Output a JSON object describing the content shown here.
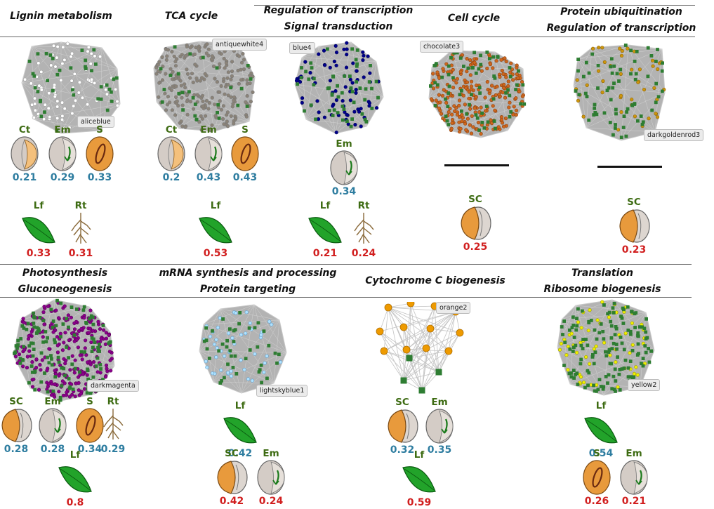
{
  "rows": [
    {
      "modules": [
        {
          "id": "m1",
          "title_lines": [
            "Lignin metabolism"
          ],
          "color_name": "aliceblue",
          "node_color": "#ffffff",
          "node_stroke": "#9a9a9a",
          "blue_tissues": [
            {
              "label": "Ct",
              "icon": "cotyledon",
              "value": "0.21"
            },
            {
              "label": "Em",
              "icon": "embryo",
              "value": "0.29"
            },
            {
              "label": "S",
              "icon": "seed",
              "value": "0.33"
            }
          ],
          "red_tissues": [
            {
              "label": "Lf",
              "icon": "leaf",
              "value": "0.33"
            },
            {
              "label": "Rt",
              "icon": "root",
              "value": "0.31"
            }
          ]
        },
        {
          "id": "m2",
          "title_lines": [
            "TCA cycle"
          ],
          "color_name": "antiquewhite4",
          "node_color": "#8b8378",
          "node_stroke": "#777",
          "blue_tissues": [
            {
              "label": "Ct",
              "icon": "cotyledon",
              "value": "0.2"
            },
            {
              "label": "Em",
              "icon": "embryo",
              "value": "0.43"
            },
            {
              "label": "S",
              "icon": "seed",
              "value": "0.43"
            }
          ],
          "red_tissues": [
            {
              "label": "Lf",
              "icon": "leaf",
              "value": "0.53"
            }
          ]
        },
        {
          "id": "m3",
          "title_lines": [
            "Regulation of transcription",
            "Signal transduction"
          ],
          "color_name": "blue4",
          "node_color": "#00008b",
          "node_stroke": "#00005a",
          "blue_tissues": [
            {
              "label": "Em",
              "icon": "embryo",
              "value": "0.34"
            }
          ],
          "red_tissues": [
            {
              "label": "Lf",
              "icon": "leaf",
              "value": "0.21"
            },
            {
              "label": "Rt",
              "icon": "root",
              "value": "0.24"
            }
          ]
        },
        {
          "id": "m4",
          "title_lines": [
            "Cell cycle"
          ],
          "color_name": "chocolate3",
          "node_color": "#cd661d",
          "node_stroke": "#8a4010",
          "blue_tissues": [],
          "red_tissues": [
            {
              "label": "SC",
              "icon": "seedcoat",
              "value": "0.25"
            }
          ]
        },
        {
          "id": "m5",
          "title_lines": [
            "Protein ubiquitination",
            "Regulation of transcription"
          ],
          "color_name": "darkgoldenrod3",
          "node_color": "#cd950c",
          "node_stroke": "#8a6408",
          "blue_tissues": [],
          "red_tissues": [
            {
              "label": "SC",
              "icon": "seedcoat",
              "value": "0.23"
            }
          ]
        }
      ]
    },
    {
      "modules": [
        {
          "id": "m6",
          "title_lines": [
            "Photosynthesis",
            "Gluconeogenesis"
          ],
          "color_name": "darkmagenta",
          "node_color": "#8b008b",
          "node_stroke": "#5a005a",
          "blue_tissues": [
            {
              "label": "SC",
              "icon": "seedcoat",
              "value": "0.28"
            },
            {
              "label": "Em",
              "icon": "embryo",
              "value": "0.28"
            },
            {
              "label": "S",
              "icon": "seed",
              "value": "0.34"
            },
            {
              "label": "Rt",
              "icon": "root",
              "value": "0.29"
            }
          ],
          "red_tissues": [
            {
              "label": "Lf",
              "icon": "leaf",
              "value": "0.8"
            }
          ]
        },
        {
          "id": "m7",
          "title_lines": [
            "mRNA synthesis and processing",
            "Protein targeting"
          ],
          "color_name": "lightskyblue1",
          "node_color": "#b0e2ff",
          "node_stroke": "#5b9bc9",
          "blue_tissues": [
            {
              "label": "Lf",
              "icon": "leaf",
              "value": "0.42"
            }
          ],
          "red_tissues": [
            {
              "label": "SC",
              "icon": "seedcoat",
              "value": "0.42"
            },
            {
              "label": "Em",
              "icon": "embryo",
              "value": "0.24"
            }
          ]
        },
        {
          "id": "m8",
          "title_lines": [
            "Cytochrome C biogenesis"
          ],
          "color_name": "orange2",
          "node_color": "#ee9a00",
          "node_stroke": "#b06f00",
          "blue_tissues": [
            {
              "label": "SC",
              "icon": "seedcoat",
              "value": "0.32"
            },
            {
              "label": "Em",
              "icon": "embryo",
              "value": "0.35"
            }
          ],
          "red_tissues": [
            {
              "label": "Lf",
              "icon": "leaf",
              "value": "0.59"
            }
          ]
        },
        {
          "id": "m9",
          "title_lines": [
            "Translation",
            "Ribosome biogenesis"
          ],
          "color_name": "yellow2",
          "node_color": "#eeee00",
          "node_stroke": "#9a9a00",
          "blue_tissues": [
            {
              "label": "Lf",
              "icon": "leaf",
              "value": "0.54"
            }
          ],
          "red_tissues": [
            {
              "label": "S",
              "icon": "seed",
              "value": "0.26"
            },
            {
              "label": "Em",
              "icon": "embryo",
              "value": "0.21"
            }
          ]
        }
      ]
    }
  ],
  "colors": {
    "hub_square": "#2e7d32",
    "edge": "#a9a9a9",
    "value_blue": "#2e7da0",
    "value_red": "#d11f1f",
    "label_green": "#3d6b12"
  }
}
